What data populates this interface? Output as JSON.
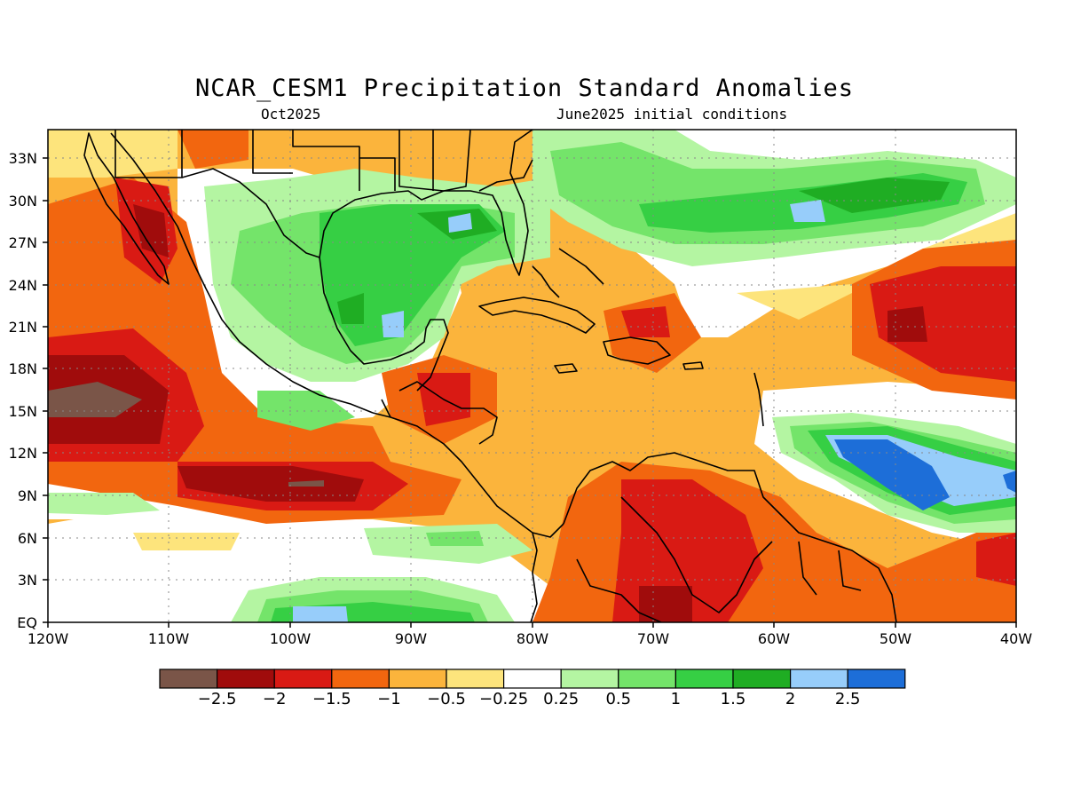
{
  "title": "NCAR_CESM1 Precipitation Standard Anomalies",
  "subtitle_left": "Oct2025",
  "subtitle_right": "June2025 initial conditions",
  "lat_labels": [
    "33N",
    "30N",
    "27N",
    "24N",
    "21N",
    "18N",
    "15N",
    "12N",
    "9N",
    "6N",
    "3N",
    "EQ"
  ],
  "lon_labels": [
    "120W",
    "110W",
    "100W",
    "90W",
    "80W",
    "70W",
    "60W",
    "50W",
    "40W"
  ],
  "colorbar": {
    "colors": [
      "#7a5548",
      "#a00c0c",
      "#d91a14",
      "#f2660f",
      "#fbb43c",
      "#fde47c",
      "#ffffff",
      "#b4f5a2",
      "#74e46a",
      "#36cf44",
      "#1fad23",
      "#97cdfa",
      "#1d6ed8"
    ],
    "labels": [
      "−2.5",
      "−2",
      "−1.5",
      "−1",
      "−0.5",
      "−0.25",
      "0.25",
      "0.5",
      "1",
      "1.5",
      "2",
      "2.5"
    ]
  },
  "icons": [
    "coastline-map",
    "gridlines"
  ]
}
